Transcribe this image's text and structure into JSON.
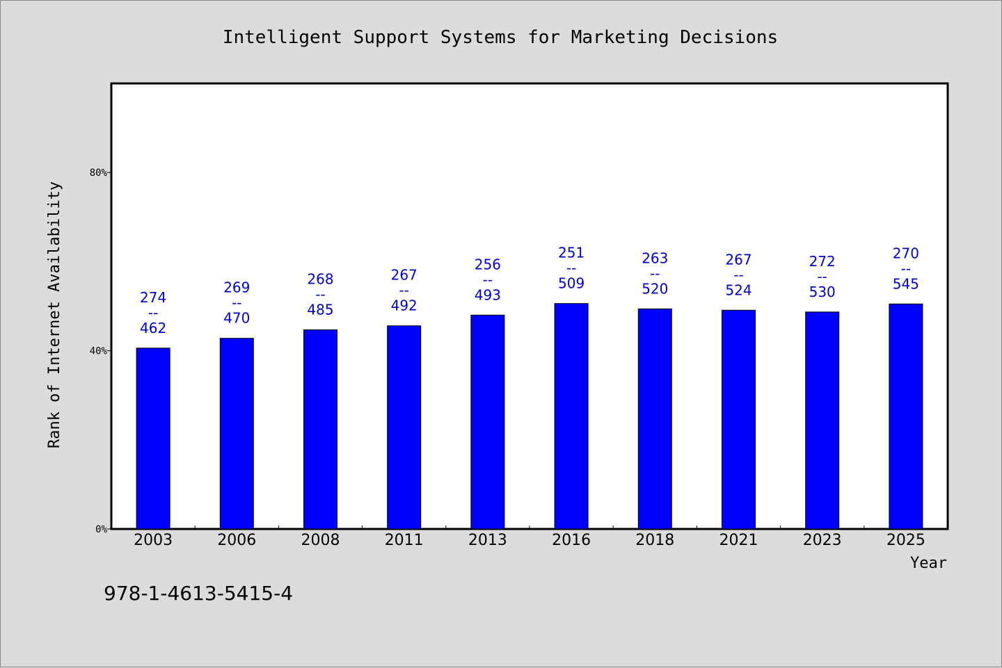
{
  "chart_data": {
    "type": "bar",
    "title": "Intelligent Support Systems for Marketing Decisions",
    "xlabel": "Year",
    "ylabel": "Rank of Internet Availability",
    "categories": [
      "2003",
      "2006",
      "2008",
      "2011",
      "2013",
      "2016",
      "2018",
      "2021",
      "2023",
      "2025"
    ],
    "values": [
      40.6,
      42.8,
      44.7,
      45.6,
      48.0,
      50.6,
      49.4,
      49.1,
      48.7,
      50.5
    ],
    "data_labels": [
      [
        "274",
        "--",
        "462"
      ],
      [
        "269",
        "--",
        "470"
      ],
      [
        "268",
        "--",
        "485"
      ],
      [
        "267",
        "--",
        "492"
      ],
      [
        "256",
        "--",
        "493"
      ],
      [
        "251",
        "--",
        "509"
      ],
      [
        "263",
        "--",
        "520"
      ],
      [
        "267",
        "--",
        "524"
      ],
      [
        "272",
        "--",
        "530"
      ],
      [
        "270",
        "--",
        "545"
      ]
    ],
    "yticks": [
      {
        "value": 0,
        "label": "0%"
      },
      {
        "value": 40,
        "label": "40%"
      },
      {
        "value": 80,
        "label": "80%"
      }
    ],
    "ylim": [
      0,
      100
    ],
    "bar_color": "#0000ff",
    "label_color": "#0000cd",
    "grid": false,
    "legend": "none"
  },
  "footer_text": "978-1-4613-5415-4"
}
